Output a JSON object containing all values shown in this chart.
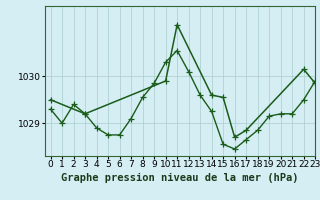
{
  "title": "Graphe pression niveau de la mer (hPa)",
  "background_color": "#d4eef4",
  "line_color": "#1a5c1a",
  "grid_color": "#aacccc",
  "xlim": [
    -0.5,
    23
  ],
  "ylim": [
    1028.3,
    1031.5
  ],
  "yticks": [
    1029,
    1030
  ],
  "xticks": [
    0,
    1,
    2,
    3,
    4,
    5,
    6,
    7,
    8,
    9,
    10,
    11,
    12,
    13,
    14,
    15,
    16,
    17,
    18,
    19,
    20,
    21,
    22,
    23
  ],
  "series1_x": [
    0,
    1,
    2,
    3,
    4,
    5,
    6,
    7,
    8,
    9,
    10,
    11,
    12,
    13,
    14,
    15,
    16,
    17,
    18,
    19,
    20,
    21,
    22,
    23
  ],
  "series1_y": [
    1029.3,
    1029.0,
    1029.4,
    1029.2,
    1028.9,
    1028.75,
    1028.75,
    1029.1,
    1029.55,
    1029.85,
    1030.3,
    1030.55,
    1030.1,
    1029.6,
    1029.25,
    1028.55,
    1028.45,
    1028.65,
    1028.85,
    1029.15,
    1029.2,
    1029.2,
    1029.5,
    1029.9
  ],
  "series2_x": [
    0,
    3,
    10,
    11,
    14,
    15,
    16,
    17,
    22,
    23
  ],
  "series2_y": [
    1029.5,
    1029.2,
    1029.9,
    1031.1,
    1029.6,
    1029.55,
    1028.7,
    1028.85,
    1030.15,
    1029.85
  ],
  "marker_size": 4,
  "linewidth1": 1.0,
  "linewidth2": 1.1,
  "title_fontsize": 7.5,
  "tick_fontsize": 6.5
}
